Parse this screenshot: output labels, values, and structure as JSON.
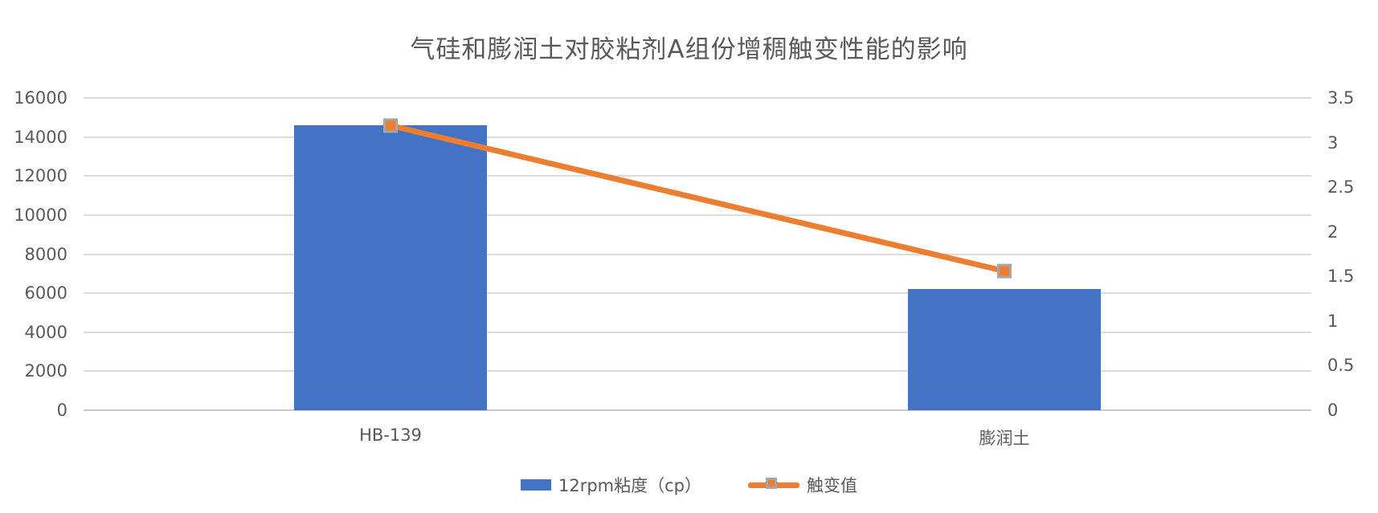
{
  "chart_data": {
    "type": "bar",
    "subtype": "combo-bar-line",
    "title": "气硅和膨润土对胶粘剂A组份增稠触变性能的影响",
    "categories": [
      "HB-139",
      "膨润土"
    ],
    "series": [
      {
        "name": "12rpm粘度（cp）",
        "type": "bar",
        "axis": "left",
        "values": [
          14600,
          6200
        ],
        "color": "#4472C4"
      },
      {
        "name": "触变值",
        "type": "line",
        "axis": "right",
        "values": [
          3.19,
          1.56
        ],
        "color": "#ED7D31",
        "marker": "square",
        "marker_border_color": "#A6A6A6"
      }
    ],
    "left_axis": {
      "min": 0,
      "max": 16000,
      "step": 2000,
      "ticks": [
        "0",
        "2000",
        "4000",
        "6000",
        "8000",
        "10000",
        "12000",
        "14000",
        "16000"
      ]
    },
    "right_axis": {
      "min": 0,
      "max": 3.5,
      "step": 0.5,
      "ticks": [
        "0",
        "0.5",
        "1",
        "1.5",
        "2",
        "2.5",
        "3",
        "3.5"
      ]
    },
    "grid": true,
    "legend_position": "bottom",
    "colors": {
      "bar": "#4472C4",
      "line": "#ED7D31",
      "marker_border": "#A6A6A6",
      "gridline": "#DCDCDC",
      "axis_baseline": "#C9C9C9",
      "text": "#595959",
      "background": "#FFFFFF"
    }
  }
}
